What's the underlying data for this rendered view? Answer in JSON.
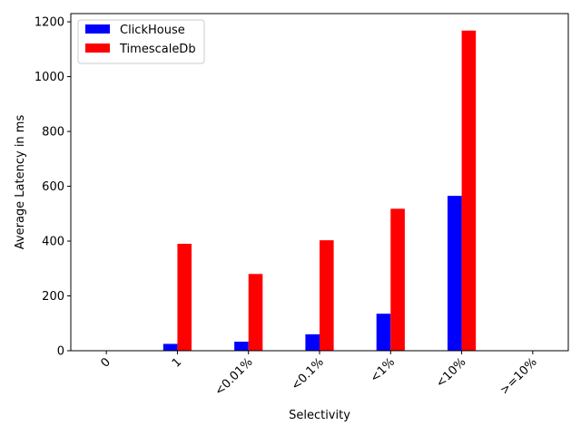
{
  "chart_data": {
    "type": "bar",
    "title": "",
    "xlabel": "Selectivity",
    "ylabel": "Average Latency in ms",
    "categories": [
      "0",
      "1",
      "<0.01%",
      "<0.1%",
      "<1%",
      "<10%",
      ">=10%"
    ],
    "series": [
      {
        "name": "ClickHouse",
        "color": "#0000ff",
        "values": [
          0,
          25,
          33,
          60,
          135,
          565,
          0
        ]
      },
      {
        "name": "TimescaleDb",
        "color": "#ff0000",
        "values": [
          0,
          390,
          280,
          403,
          518,
          1168,
          0
        ]
      }
    ],
    "ylim": [
      0,
      1230
    ],
    "yticks": [
      0,
      200,
      400,
      600,
      800,
      1000,
      1200
    ],
    "grid": false,
    "legend_position": "top-left"
  }
}
